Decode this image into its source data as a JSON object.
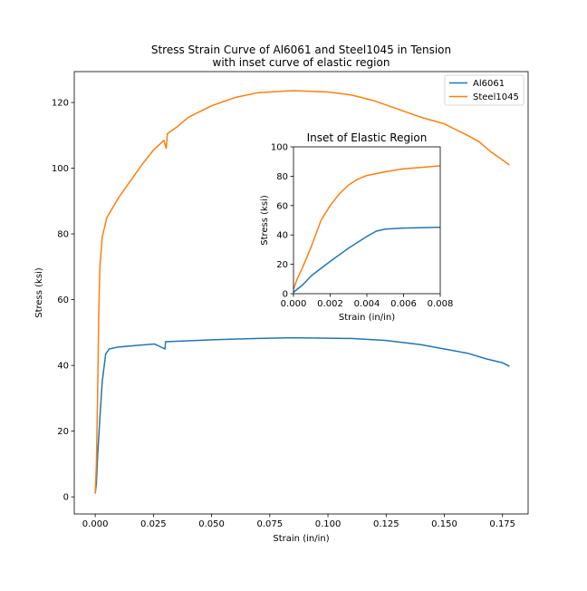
{
  "chart_data": [
    {
      "type": "line",
      "title": "Stress Strain Curve of Al6061 and Steel1045 in Tension\nwith inset curve of elastic region",
      "xlabel": "Strain (in/in)",
      "ylabel": "Stress (ksi)",
      "xlim": [
        -0.009,
        0.186
      ],
      "ylim": [
        -5.2,
        129.4
      ],
      "xticks": [
        0.0,
        0.025,
        0.05,
        0.075,
        0.1,
        0.125,
        0.15,
        0.175
      ],
      "xtick_labels": [
        "0.000",
        "0.025",
        "0.050",
        "0.075",
        "0.100",
        "0.125",
        "0.150",
        "0.175"
      ],
      "yticks": [
        0,
        20,
        40,
        60,
        80,
        100,
        120
      ],
      "ytick_labels": [
        "0",
        "20",
        "40",
        "60",
        "80",
        "100",
        "120"
      ],
      "grid": false,
      "legend": "top-right",
      "series": [
        {
          "name": "Al6061",
          "color": "#1f77b4",
          "x": [
            0,
            0.0005,
            0.001,
            0.002,
            0.003,
            0.0045,
            0.006,
            0.01,
            0.02,
            0.0255,
            0.03,
            0.0302,
            0.05,
            0.07,
            0.085,
            0.11,
            0.125,
            0.14,
            0.15,
            0.16,
            0.168,
            0.175,
            0.178
          ],
          "y": [
            1,
            4,
            12,
            24,
            35,
            43.5,
            45,
            45.6,
            46.2,
            46.5,
            45,
            47.2,
            47.8,
            48.2,
            48.4,
            48.2,
            47.6,
            46.3,
            45,
            43.7,
            42,
            40.8,
            39.7
          ]
        },
        {
          "name": "Steel1045",
          "color": "#ff7f0e",
          "x": [
            0,
            0.0005,
            0.001,
            0.0015,
            0.002,
            0.003,
            0.005,
            0.01,
            0.015,
            0.02,
            0.025,
            0.0295,
            0.0305,
            0.031,
            0.035,
            0.04,
            0.05,
            0.06,
            0.07,
            0.085,
            0.1,
            0.11,
            0.12,
            0.13,
            0.14,
            0.15,
            0.16,
            0.165,
            0.17,
            0.175,
            0.178
          ],
          "y": [
            1,
            10,
            30,
            55,
            70,
            79,
            85,
            91,
            96,
            101,
            105.5,
            108.5,
            106,
            110.5,
            112.5,
            115.5,
            119,
            121.5,
            123,
            123.6,
            123.2,
            122.3,
            120.5,
            118,
            115.5,
            113.5,
            110,
            108,
            105,
            102.5,
            101
          ]
        }
      ]
    },
    {
      "type": "line",
      "title": "Inset of Elastic Region",
      "xlabel": "Strain (in/in)",
      "ylabel": "Stress (ksi)",
      "xlim": [
        0,
        0.008
      ],
      "ylim": [
        0,
        100
      ],
      "xticks": [
        0,
        0.002,
        0.004,
        0.006,
        0.008
      ],
      "xtick_labels": [
        "0.000",
        "0.002",
        "0.004",
        "0.006",
        "0.008"
      ],
      "yticks": [
        0,
        20,
        40,
        60,
        80,
        100
      ],
      "ytick_labels": [
        "0",
        "20",
        "40",
        "60",
        "80",
        "100"
      ],
      "grid": false,
      "series": [
        {
          "color": "#1f77b4",
          "x": [
            0,
            0.0002,
            0.0005,
            0.001,
            0.002,
            0.003,
            0.004,
            0.0045,
            0.005,
            0.006,
            0.008
          ],
          "y": [
            1,
            3,
            6,
            12.5,
            22,
            31,
            39,
            42.5,
            44,
            44.7,
            45.2
          ]
        },
        {
          "color": "#ff7f0e",
          "x": [
            0,
            0.0002,
            0.0005,
            0.001,
            0.0015,
            0.002,
            0.0025,
            0.003,
            0.0035,
            0.004,
            0.005,
            0.006,
            0.007,
            0.008
          ],
          "y": [
            3,
            10,
            18,
            33,
            50,
            60,
            68,
            74,
            78,
            80.5,
            83,
            85,
            86,
            87
          ]
        }
      ]
    }
  ]
}
